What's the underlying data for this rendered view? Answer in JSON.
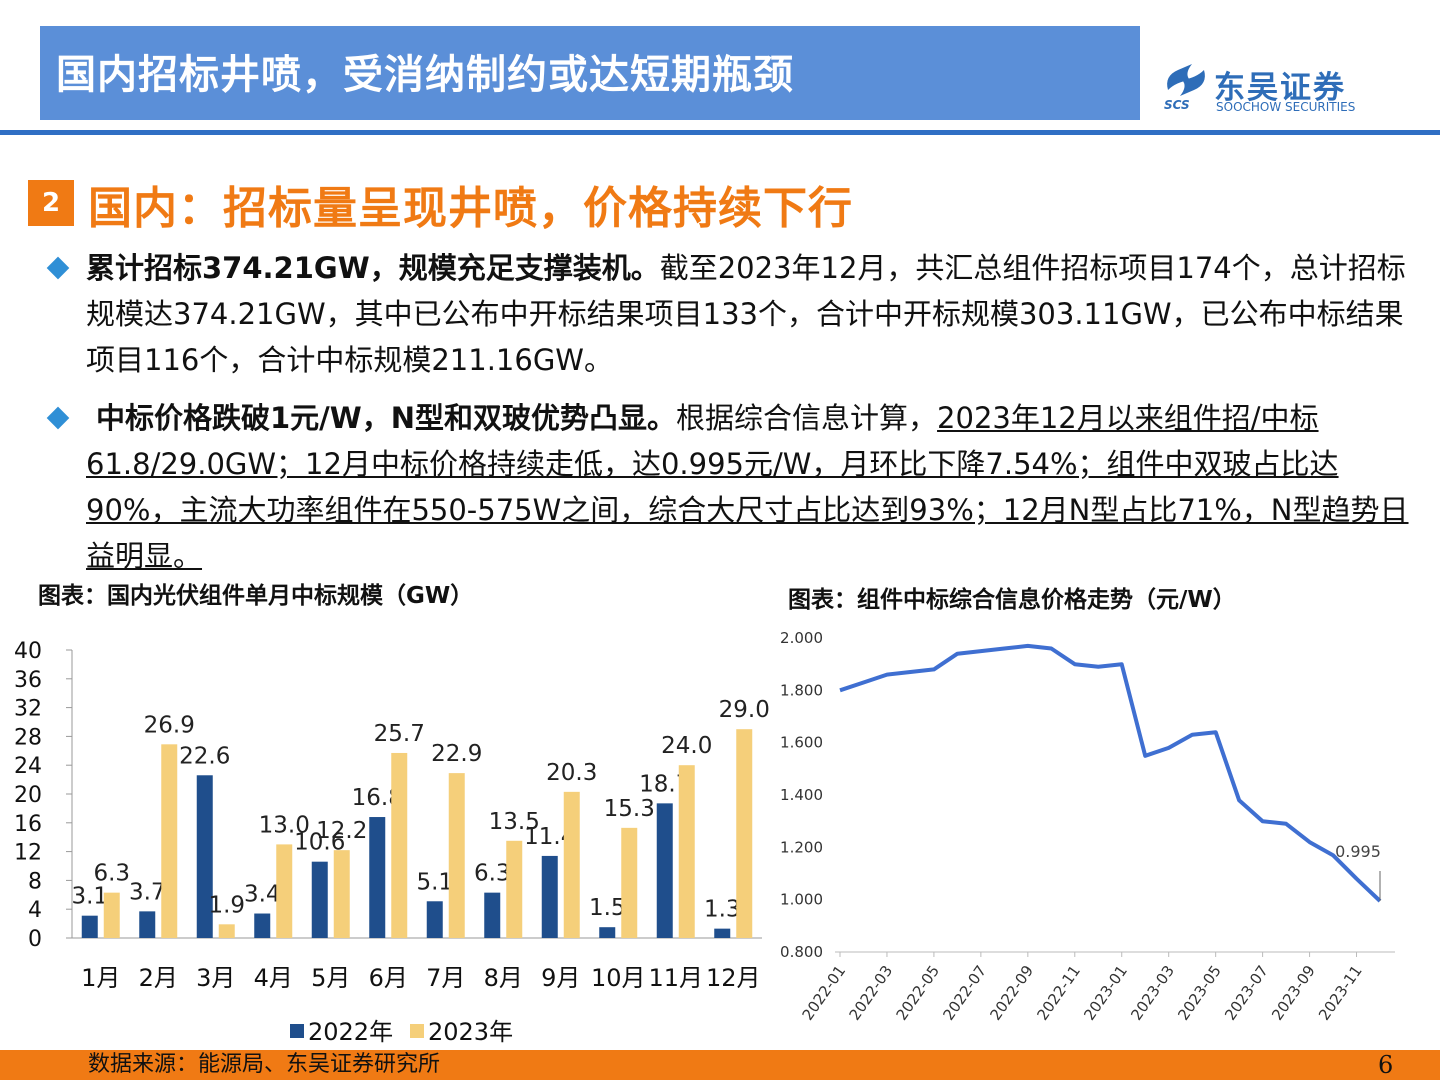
{
  "header": {
    "title": "国内招标井喷，受消纳制约或达短期瓶颈",
    "logo_cn": "东吴证券",
    "logo_en": "SOOCHOW SECURITIES",
    "logo_mark": "SCS"
  },
  "section": {
    "number": "2",
    "title": "国内：招标量呈现井喷，价格持续下行"
  },
  "bullets": [
    {
      "bold": "累计招标374.21GW，规模充足支撑装机。",
      "text": "截至2023年12月，共汇总组件招标项目174个，总计招标规模达374.21GW，其中已公布中开标结果项目133个，合计中开标规模303.11GW，已公布中标结果项目116个，合计中标规模211.16GW。"
    },
    {
      "bold": "中标价格跌破1元/W，N型和双玻优势凸显。",
      "text": "根据综合信息计算，",
      "underlined": "2023年12月以来组件招/中标61.8/29.0GW；12月中标价格持续走低，达0.995元/W，月环比下降7.54%；组件中双玻占比达90%，主流大功率组件在550-575W之间，综合大尺寸占比达到93%；12月N型占比71%，N型趋势日益明显。"
    }
  ],
  "captions": {
    "left": "图表：国内光伏组件单月中标规模（GW）",
    "right": "图表：组件中标综合信息价格走势（元/W）"
  },
  "chart_data": [
    {
      "type": "bar",
      "categories": [
        "1月",
        "2月",
        "3月",
        "4月",
        "5月",
        "6月",
        "7月",
        "8月",
        "9月",
        "10月",
        "11月",
        "12月"
      ],
      "series": [
        {
          "name": "2022年",
          "values": [
            3.1,
            3.7,
            22.6,
            3.4,
            10.6,
            16.8,
            5.1,
            6.3,
            11.4,
            1.5,
            18.7,
            1.3
          ],
          "color": "#1f4e8c"
        },
        {
          "name": "2023年",
          "values": [
            6.3,
            26.9,
            1.9,
            13.0,
            12.2,
            25.7,
            22.9,
            13.5,
            20.3,
            15.3,
            24.0,
            29.0
          ],
          "color": "#f5cf7a"
        }
      ],
      "yticks": [
        "0",
        "4",
        "8",
        "12",
        "16",
        "20",
        "24",
        "28",
        "32",
        "36",
        "40"
      ],
      "ylim": [
        0,
        40
      ],
      "legend_position": "bottom"
    },
    {
      "type": "line",
      "x": [
        "2022-01",
        "2022-02",
        "2022-03",
        "2022-04",
        "2022-05",
        "2022-06",
        "2022-07",
        "2022-08",
        "2022-09",
        "2022-10",
        "2022-11",
        "2022-12",
        "2023-01",
        "2023-02",
        "2023-03",
        "2023-04",
        "2023-05",
        "2023-06",
        "2023-07",
        "2023-08",
        "2023-09",
        "2023-10",
        "2023-11",
        "2023-12"
      ],
      "values": [
        1.8,
        1.83,
        1.86,
        1.87,
        1.88,
        1.94,
        1.95,
        1.96,
        1.97,
        1.96,
        1.9,
        1.89,
        1.9,
        1.55,
        1.58,
        1.63,
        1.64,
        1.38,
        1.3,
        1.29,
        1.22,
        1.17,
        1.08,
        0.995
      ],
      "series": [
        {
          "color": "#3f6fd1"
        }
      ],
      "yticks": [
        "0.800",
        "1.000",
        "1.200",
        "1.400",
        "1.600",
        "1.800",
        "2.000"
      ],
      "xticks": [
        "2022-01",
        "2022-03",
        "2022-05",
        "2022-07",
        "2022-09",
        "2022-11",
        "2023-01",
        "2023-03",
        "2023-05",
        "2023-07",
        "2023-09",
        "2023-11"
      ],
      "ylim": [
        0.8,
        2.0
      ],
      "annotation": "0.995",
      "grid": false
    }
  ],
  "footer": {
    "source": "数据来源：能源局、东吴证券研究所",
    "page": "6"
  }
}
